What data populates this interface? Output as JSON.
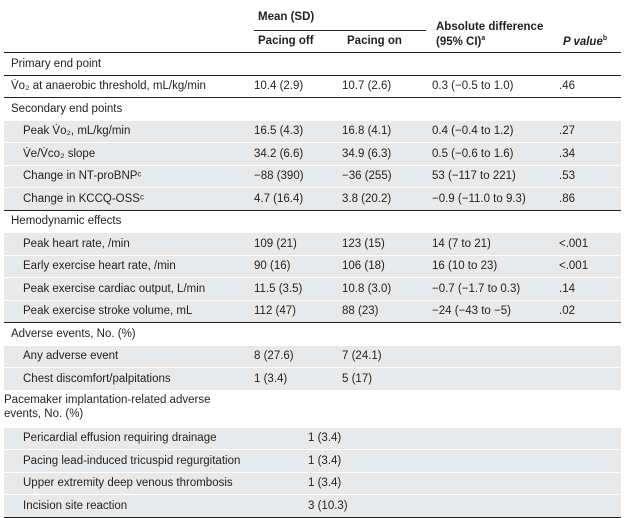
{
  "header": {
    "mean_sd": "Mean (SD)",
    "pacing_off": "Pacing off",
    "pacing_on": "Pacing on",
    "abs_diff_line1": "Absolute difference",
    "abs_diff_line2": "(95% CI)",
    "abs_diff_sup": "a",
    "p_value": "P value",
    "p_value_sup": "b"
  },
  "rows": [
    {
      "type": "sec",
      "label": "Primary end point"
    },
    {
      "type": "sec",
      "label": "V̇o₂ at anaerobic threshold, mL/kg/min",
      "off": "10.4 (2.9)",
      "on": "10.7 (2.6)",
      "diff": "0.3 (−0.5 to 1.0)",
      "p": ".46"
    },
    {
      "type": "sec",
      "label": "Secondary end points"
    },
    {
      "type": "sub",
      "label": "Peak V̇o₂, mL/kg/min",
      "off": "16.5 (4.3)",
      "on": "16.8 (4.1)",
      "diff": "0.4 (−0.4 to 1.2)",
      "p": ".27"
    },
    {
      "type": "sub",
      "label": "V̇e/V̇co₂ slope",
      "off": "34.2 (6.6)",
      "on": "34.9 (6.3)",
      "diff": "0.5 (−0.6 to 1.6)",
      "p": ".34"
    },
    {
      "type": "sub",
      "label": "Change in NT-proBNPᶜ",
      "off": "−88 (390)",
      "on": "−36 (255)",
      "diff": "53 (−117 to 221)",
      "p": ".53"
    },
    {
      "type": "sub",
      "label": "Change in KCCQ-OSSᶜ",
      "off": "4.7 (16.4)",
      "on": "3.8 (20.2)",
      "diff": "−0.9 (−11.0 to 9.3)",
      "p": ".86"
    },
    {
      "type": "sec",
      "label": "Hemodynamic effects"
    },
    {
      "type": "sub",
      "label": "Peak heart rate, /min",
      "off": "109 (21)",
      "on": "123 (15)",
      "diff": "14 (7 to 21)",
      "p": "<.001"
    },
    {
      "type": "sub",
      "label": "Early exercise heart rate, /min",
      "off": "90 (16)",
      "on": "106 (18)",
      "diff": "16 (10 to 23)",
      "p": "<.001"
    },
    {
      "type": "sub",
      "label": "Peak exercise cardiac output, L/min",
      "off": "11.5 (3.5)",
      "on": "10.8 (3.0)",
      "diff": "−0.7 (−1.7 to 0.3)",
      "p": ".14"
    },
    {
      "type": "sub",
      "label": "Peak exercise stroke volume, mL",
      "off": "112 (47)",
      "on": "88 (23)",
      "diff": "−24 (−43 to −5)",
      "p": ".02"
    },
    {
      "type": "sec",
      "label": "Adverse events, No. (%)"
    },
    {
      "type": "sub",
      "label": "Any adverse event",
      "off": "8 (27.6)",
      "on": "7 (24.1)",
      "diff": "",
      "p": ""
    },
    {
      "type": "sub",
      "label": "Chest discomfort/palpitations",
      "off": "1 (3.4)",
      "on": "5 (17)",
      "diff": "",
      "p": ""
    },
    {
      "type": "sec2",
      "label": "Pacemaker implantation-related adverse events, No. (%)"
    },
    {
      "type": "subm",
      "label": "Pericardial effusion requiring drainage",
      "merged": "1 (3.4)"
    },
    {
      "type": "subm",
      "label": "Pacing lead-induced tricuspid regurgitation",
      "merged": "1 (3.4)"
    },
    {
      "type": "subm",
      "label": "Upper extremity deep venous thrombosis",
      "merged": "1 (3.4)"
    },
    {
      "type": "subm",
      "label": "Incision site reaction",
      "merged": "3 (10.3)"
    }
  ]
}
